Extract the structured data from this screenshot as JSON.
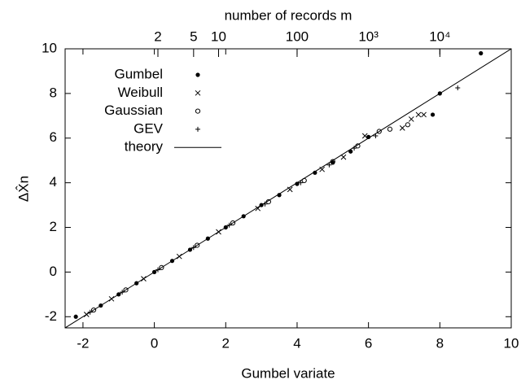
{
  "chart_data": {
    "type": "scatter",
    "xlabel": "Gumbel variate",
    "ylabel": "ΔX̂n",
    "x2label": "number of records m",
    "xlim": [
      -2.5,
      10
    ],
    "ylim": [
      -2.5,
      10
    ],
    "xticks": [
      -2,
      0,
      2,
      4,
      6,
      8,
      10
    ],
    "yticks": [
      -2,
      0,
      2,
      4,
      6,
      8,
      10
    ],
    "x2ticks": [
      {
        "value": 0.1,
        "label": "2"
      },
      {
        "value": 1.1,
        "label": "5"
      },
      {
        "value": 1.8,
        "label": "10"
      },
      {
        "value": 4.0,
        "label": "100"
      },
      {
        "value": 6.0,
        "label": "10³"
      },
      {
        "value": 8.0,
        "label": "10⁴"
      }
    ],
    "legend": "upper left",
    "series": [
      {
        "name": "Gumbel",
        "color": "#000000",
        "marker": "dot",
        "x": [
          -2.2,
          -1.5,
          -1,
          -0.5,
          0,
          0.5,
          1,
          1.5,
          2,
          2.5,
          3,
          3.5,
          4,
          4.5,
          5,
          5.5,
          6,
          7.8,
          8.0,
          9.15
        ],
        "y": [
          -2.0,
          -1.5,
          -1.0,
          -0.5,
          0,
          0.5,
          1.0,
          1.5,
          2.0,
          2.5,
          3.0,
          3.45,
          3.95,
          4.45,
          4.9,
          5.4,
          6.05,
          7.05,
          8.0,
          9.8
        ]
      },
      {
        "name": "Weibull",
        "color": "#000000",
        "marker": "cross",
        "x": [
          -1.9,
          -1.2,
          -0.3,
          0.7,
          1.8,
          2.9,
          3.8,
          4.7,
          5.3,
          5.9,
          6.95,
          7.2,
          7.4,
          7.55
        ],
        "y": [
          -1.9,
          -1.2,
          -0.3,
          0.7,
          1.8,
          2.85,
          3.7,
          4.6,
          5.15,
          6.1,
          6.45,
          6.85,
          7.05,
          7.05
        ]
      },
      {
        "name": "Gaussian",
        "color": "#000000",
        "marker": "circle",
        "x": [
          -1.7,
          -0.8,
          0.2,
          1.2,
          2.2,
          3.2,
          4.2,
          5.0,
          5.7,
          6.3,
          6.6,
          7.1
        ],
        "y": [
          -1.7,
          -0.8,
          0.2,
          1.2,
          2.2,
          3.15,
          4.1,
          4.95,
          5.65,
          6.3,
          6.4,
          6.6
        ]
      },
      {
        "name": "GEV",
        "color": "#000000",
        "marker": "plus",
        "x": [
          -1.8,
          -0.9,
          0.1,
          1.1,
          2.1,
          3.1,
          4.1,
          4.9,
          5.6,
          6.2,
          8.5
        ],
        "y": [
          -1.8,
          -0.9,
          0.1,
          1.1,
          2.1,
          3.05,
          4.0,
          4.8,
          5.55,
          6.1,
          8.25
        ]
      },
      {
        "name": "theory",
        "color": "#000000",
        "marker": "line",
        "x": [
          -2.5,
          10
        ],
        "y": [
          -2.5,
          10
        ]
      }
    ]
  }
}
